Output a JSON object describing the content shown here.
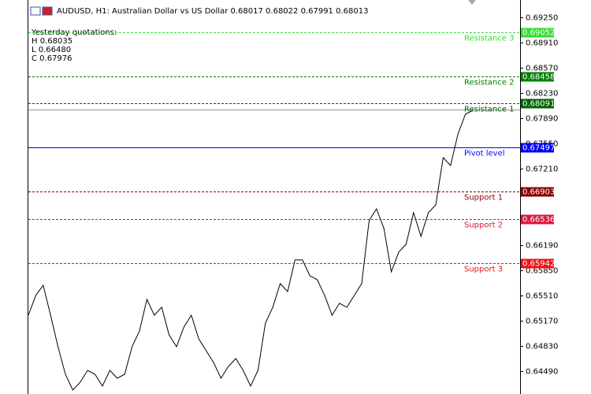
{
  "chart_data": {
    "type": "line",
    "title": "AUDUSD, H1:  Australian Dollar vs US Dollar  0.68017 0.68022 0.67991 0.68013",
    "info": {
      "heading": "Yesterday quotations:",
      "lines": [
        "H 0.68035",
        "L 0.66480",
        "C 0.67976"
      ]
    },
    "ylim": [
      0.64182,
      0.69483
    ],
    "yticks": [
      {
        "value": 0.6925,
        "label": "0.69250"
      },
      {
        "value": 0.6891,
        "label": "0.68910"
      },
      {
        "value": 0.6857,
        "label": "0.68570"
      },
      {
        "value": 0.6823,
        "label": "0.68230"
      },
      {
        "value": 0.6789,
        "label": "0.67890"
      },
      {
        "value": 0.6755,
        "label": "0.67550"
      },
      {
        "value": 0.6721,
        "label": "0.67210"
      },
      {
        "value": 0.6619,
        "label": "0.66190"
      },
      {
        "value": 0.6585,
        "label": "0.65850"
      },
      {
        "value": 0.6551,
        "label": "0.65510"
      },
      {
        "value": 0.6517,
        "label": "0.65170"
      },
      {
        "value": 0.6483,
        "label": "0.64830"
      },
      {
        "value": 0.6449,
        "label": "0.64490"
      }
    ],
    "current_price": 0.68013,
    "levels": [
      {
        "name": "Resistance 3",
        "value": 0.69052,
        "color": "#33dd33",
        "dashed": true
      },
      {
        "name": "Resistance 2",
        "value": 0.68458,
        "color": "#008000",
        "dashed": true
      },
      {
        "name": "Resistance 1",
        "value": 0.68091,
        "color": "#006400",
        "dashed": true
      },
      {
        "name": "Pivot level",
        "value": 0.67497,
        "color": "#0000ff",
        "dashed": false
      },
      {
        "name": "Support 1",
        "value": 0.66903,
        "color": "#8b0000",
        "dashed": true
      },
      {
        "name": "Support 2",
        "value": 0.66536,
        "color": "#dc143c",
        "dashed": true
      },
      {
        "name": "Support 3",
        "value": 0.65942,
        "color": "#ee1111",
        "dashed": true
      }
    ],
    "series": [
      {
        "color": "#000000",
        "values": [
          0.65242,
          0.65508,
          0.65645,
          0.65242,
          0.64818,
          0.64447,
          0.64235,
          0.64341,
          0.645,
          0.64447,
          0.64288,
          0.645,
          0.64394,
          0.64447,
          0.64818,
          0.6503,
          0.65455,
          0.65242,
          0.65349,
          0.64977,
          0.64818,
          0.65083,
          0.65242,
          0.64924,
          0.64765,
          0.64606,
          0.64394,
          0.64553,
          0.64659,
          0.645,
          0.64288,
          0.645,
          0.65136,
          0.65349,
          0.65667,
          0.6556,
          0.65985,
          0.65985,
          0.65773,
          0.6572,
          0.65508,
          0.65242,
          0.65402,
          0.65349,
          0.65508,
          0.65667,
          0.66515,
          0.66674,
          0.66409,
          0.65826,
          0.66091,
          0.66197,
          0.66621,
          0.66303,
          0.66621,
          0.66727,
          0.67363,
          0.67257,
          0.67681,
          0.67946,
          0.67999
        ]
      }
    ]
  }
}
